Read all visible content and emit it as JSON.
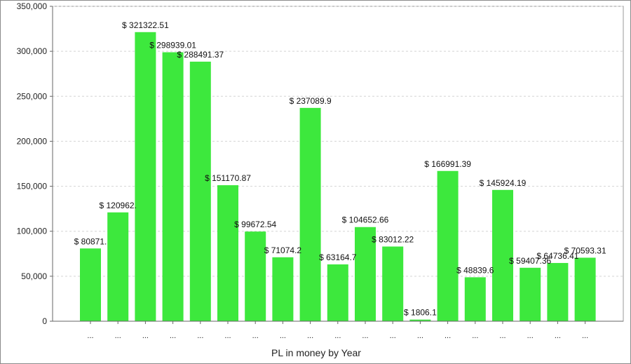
{
  "chart_data": {
    "type": "bar",
    "title": "",
    "xlabel": "PL in money by Year",
    "ylabel": "",
    "ylim": [
      0,
      350000
    ],
    "yticks": [
      0,
      50000,
      100000,
      150000,
      200000,
      250000,
      300000,
      350000
    ],
    "ytick_labels": [
      "0",
      "50,000",
      "100,000",
      "150,000",
      "200,000",
      "250,000",
      "300,000",
      "350,000"
    ],
    "grid": true,
    "bar_color": "#3de83d",
    "categories": [
      "...",
      "...",
      "...",
      "...",
      "...",
      "...",
      "...",
      "...",
      "...",
      "...",
      "...",
      "...",
      "...",
      "...",
      "...",
      "...",
      "...",
      "...",
      "..."
    ],
    "values": [
      80871,
      120962,
      321322.51,
      298939.01,
      288491.37,
      151170.87,
      99672.54,
      71074.2,
      237089.9,
      63164.7,
      104652.66,
      83012.22,
      1806.1,
      166991.39,
      48839.6,
      145924.19,
      59407.36,
      64736.41,
      70593.31
    ],
    "data_labels": [
      "$ 80871.",
      "$ 120962.",
      "$ 321322.51",
      "$ 298939.01",
      "$ 288491.37",
      "$ 151170.87",
      "$ 99672.54",
      "$ 71074.2",
      "$ 237089.9",
      "$ 63164.7",
      "$ 104652.66",
      "$ 83012.22",
      "$ 1806.1",
      "$ 166991.39",
      "$ 48839.6",
      "$ 145924.19",
      "$ 59407.36",
      "$ 64736.41",
      "$ 70593.31"
    ]
  }
}
